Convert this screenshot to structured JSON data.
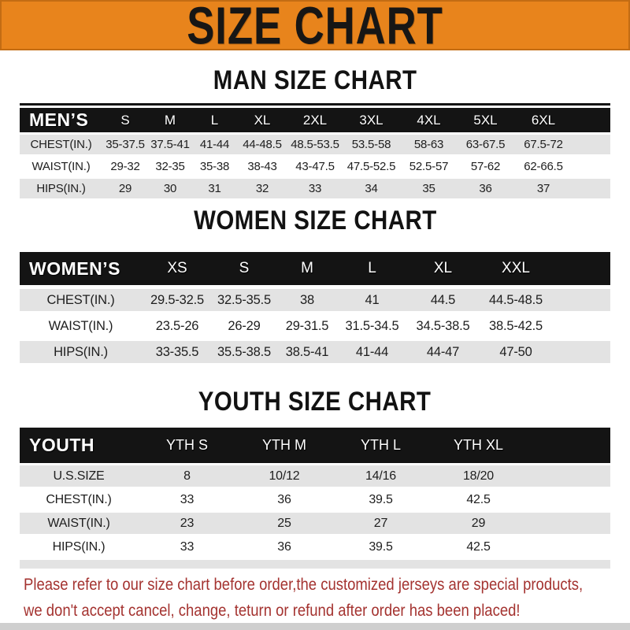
{
  "page_title": "SIZE CHART",
  "colors": {
    "banner_orange": "#E8841C",
    "header_black": "#141414",
    "row_shade_gray": "#E3E3E3",
    "note_red": "#A43330"
  },
  "note": {
    "line1": "Please refer to our size chart before order,the customized jerseys are special products,",
    "line2": "we don't accept cancel, change, teturn or refund after order has been placed!"
  },
  "chart_data": [
    {
      "type": "table",
      "title": "MAN SIZE CHART",
      "header_label": "MEN’S",
      "columns": [
        "S",
        "M",
        "L",
        "XL",
        "2XL",
        "3XL",
        "4XL",
        "5XL",
        "6XL"
      ],
      "rows": [
        {
          "label": "CHEST(IN.)",
          "values": [
            "35-37.5",
            "37.5-41",
            "41-44",
            "44-48.5",
            "48.5-53.5",
            "53.5-58",
            "58-63",
            "63-67.5",
            "67.5-72"
          ]
        },
        {
          "label": "WAIST(IN.)",
          "values": [
            "29-32",
            "32-35",
            "35-38",
            "38-43",
            "43-47.5",
            "47.5-52.5",
            "52.5-57",
            "57-62",
            "62-66.5"
          ]
        },
        {
          "label": "HIPS(IN.)",
          "values": [
            "29",
            "30",
            "31",
            "32",
            "33",
            "34",
            "35",
            "36",
            "37"
          ]
        }
      ]
    },
    {
      "type": "table",
      "title": "WOMEN SIZE CHART",
      "header_label": "WOMEN’S",
      "columns": [
        "XS",
        "S",
        "M",
        "L",
        "XL",
        "XXL"
      ],
      "rows": [
        {
          "label": "CHEST(IN.)",
          "values": [
            "29.5-32.5",
            "32.5-35.5",
            "38",
            "41",
            "44.5",
            "44.5-48.5"
          ]
        },
        {
          "label": "WAIST(IN.)",
          "values": [
            "23.5-26",
            "26-29",
            "29-31.5",
            "31.5-34.5",
            "34.5-38.5",
            "38.5-42.5"
          ]
        },
        {
          "label": "HIPS(IN.)",
          "values": [
            "33-35.5",
            "35.5-38.5",
            "38.5-41",
            "41-44",
            "44-47",
            "47-50"
          ]
        }
      ]
    },
    {
      "type": "table",
      "title": "YOUTH SIZE CHART",
      "header_label": "YOUTH",
      "columns": [
        "YTH S",
        "YTH M",
        "YTH L",
        "YTH XL"
      ],
      "rows": [
        {
          "label": "U.S.SIZE",
          "values": [
            "8",
            "10/12",
            "14/16",
            "18/20"
          ]
        },
        {
          "label": "CHEST(IN.)",
          "values": [
            "33",
            "36",
            "39.5",
            "42.5"
          ]
        },
        {
          "label": "WAIST(IN.)",
          "values": [
            "23",
            "25",
            "27",
            "29"
          ]
        },
        {
          "label": "HIPS(IN.)",
          "values": [
            "33",
            "36",
            "39.5",
            "42.5"
          ]
        }
      ]
    }
  ]
}
